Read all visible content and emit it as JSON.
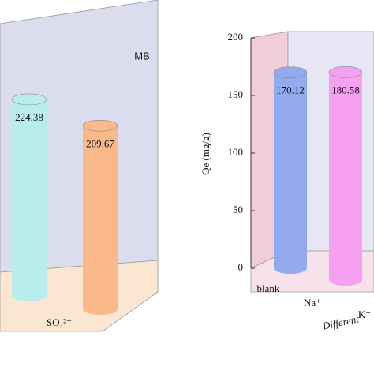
{
  "chart_data": [
    {
      "type": "cylinder",
      "annotation": "MB",
      "categories": [
        null,
        "SO₄²⁻"
      ],
      "values": [
        224.38,
        209.67
      ],
      "colors": [
        "#b9ecec",
        "#f9b98a"
      ]
    },
    {
      "type": "cylinder",
      "y_label": "Qe (mg/g)",
      "x_label": "Different",
      "categories": [
        "blank",
        "Na⁺",
        "K⁺"
      ],
      "values": [
        170.12,
        180.58,
        null
      ],
      "colors": [
        "#93aaef",
        "#f6a0f2",
        "#f6a0f2"
      ],
      "ylim": [
        0,
        200
      ],
      "yticks": [
        0,
        50,
        100,
        150,
        200
      ]
    }
  ]
}
